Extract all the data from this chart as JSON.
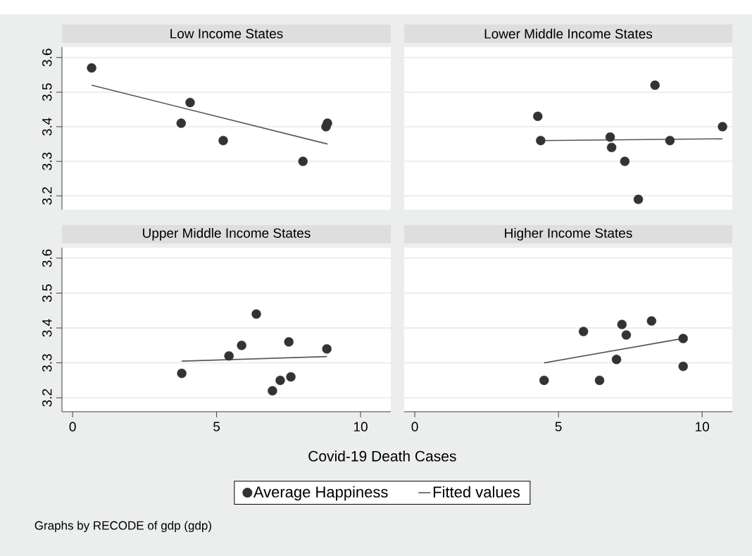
{
  "chart_data": [
    {
      "type": "scatter",
      "title": "Low Income States",
      "xlim": [
        -0.37,
        11.05
      ],
      "ylim": [
        3.16,
        3.63
      ],
      "xticks": [
        0,
        5,
        10
      ],
      "yticks": [
        3.2,
        3.3,
        3.4,
        3.5,
        3.6
      ],
      "grid": "y",
      "tick_labels": "y",
      "series": [
        {
          "type": "scatter",
          "marker": "circle",
          "color": "#333333",
          "x": [
            0.66,
            4.08,
            3.77,
            5.23,
            8.0,
            8.8,
            8.85
          ],
          "values": [
            3.57,
            3.47,
            3.41,
            3.36,
            3.3,
            3.4,
            3.41
          ]
        },
        {
          "type": "line",
          "marker": "none",
          "color": "#555555",
          "x": [
            0.66,
            8.85
          ],
          "values": [
            3.52,
            3.35
          ]
        }
      ]
    },
    {
      "type": "scatter",
      "title": "Lower Middle Income States",
      "xlim": [
        -0.37,
        11.05
      ],
      "ylim": [
        3.16,
        3.63
      ],
      "xticks": [
        0,
        5,
        10
      ],
      "yticks": [
        3.2,
        3.3,
        3.4,
        3.5,
        3.6
      ],
      "grid": "y",
      "tick_labels": false,
      "series": [
        {
          "type": "scatter",
          "marker": "circle",
          "color": "#333333",
          "x": [
            4.28,
            4.38,
            6.8,
            6.85,
            7.31,
            7.78,
            8.36,
            8.88,
            10.71
          ],
          "values": [
            3.43,
            3.36,
            3.37,
            3.34,
            3.3,
            3.19,
            3.52,
            3.36,
            3.4
          ]
        },
        {
          "type": "line",
          "marker": "none",
          "color": "#555555",
          "x": [
            4.38,
            10.71
          ],
          "values": [
            3.36,
            3.365
          ]
        }
      ]
    },
    {
      "type": "scatter",
      "title": "Upper Middle Income States",
      "xlabel": "Covid-19 Death Cases",
      "legend": "bottom",
      "annotations": [
        "Graphs by RECODE of gdp (gdp)"
      ],
      "xlim": [
        -0.37,
        11.05
      ],
      "ylim": [
        3.16,
        3.63
      ],
      "xticks": [
        0,
        5,
        10
      ],
      "yticks": [
        3.2,
        3.3,
        3.4,
        3.5,
        3.6
      ],
      "grid": "y",
      "series": [
        {
          "type": "scatter",
          "name": "Average Happiness",
          "marker": "circle",
          "color": "#333333",
          "x": [
            3.79,
            5.43,
            5.87,
            6.38,
            6.94,
            7.21,
            7.51,
            7.58,
            8.83
          ],
          "values": [
            3.27,
            3.32,
            3.35,
            3.44,
            3.22,
            3.25,
            3.36,
            3.26,
            3.34
          ]
        },
        {
          "type": "line",
          "name": "Fitted values",
          "marker": "none",
          "color": "#555555",
          "x": [
            3.79,
            8.83
          ],
          "values": [
            3.305,
            3.318
          ]
        }
      ]
    },
    {
      "type": "scatter",
      "title": "Higher Income States",
      "xlim": [
        -0.37,
        11.05
      ],
      "ylim": [
        3.16,
        3.63
      ],
      "xticks": [
        0,
        5,
        10
      ],
      "yticks": [
        3.2,
        3.3,
        3.4,
        3.5,
        3.6
      ],
      "grid": "y",
      "tick_labels": "x",
      "series": [
        {
          "type": "scatter",
          "marker": "circle",
          "color": "#333333",
          "x": [
            4.5,
            5.87,
            6.43,
            7.02,
            7.21,
            7.36,
            8.24,
            9.34,
            9.34
          ],
          "values": [
            3.25,
            3.39,
            3.25,
            3.31,
            3.41,
            3.38,
            3.42,
            3.37,
            3.29
          ]
        },
        {
          "type": "line",
          "marker": "none",
          "color": "#555555",
          "x": [
            4.5,
            9.34
          ],
          "values": [
            3.3,
            3.37
          ]
        }
      ]
    }
  ]
}
